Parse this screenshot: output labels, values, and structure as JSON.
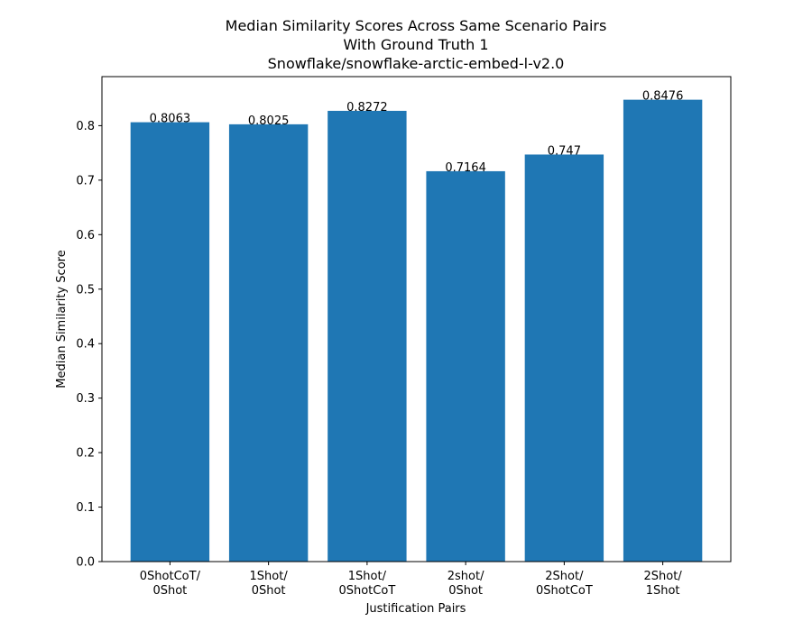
{
  "chart_data": {
    "type": "bar",
    "title": [
      "Median Similarity Scores Across Same Scenario Pairs",
      "With Ground Truth 1",
      "Snowflake/snowflake-arctic-embed-l-v2.0"
    ],
    "xlabel": "Justification Pairs",
    "ylabel": "Median Similarity Score",
    "categories": [
      [
        "0ShotCoT/",
        "0Shot"
      ],
      [
        "1Shot/",
        "0Shot"
      ],
      [
        "1Shot/",
        "0ShotCoT"
      ],
      [
        "2shot/",
        "0Shot"
      ],
      [
        "2Shot/",
        "0ShotCoT"
      ],
      [
        "2Shot/",
        "1Shot"
      ]
    ],
    "values": [
      0.8063,
      0.8025,
      0.8272,
      0.7164,
      0.747,
      0.8476
    ],
    "value_labels": [
      "0.8063",
      "0.8025",
      "0.8272",
      "0.7164",
      "0.747",
      "0.8476"
    ],
    "ylim": [
      0,
      0.89
    ],
    "yticks": [
      0.0,
      0.1,
      0.2,
      0.3,
      0.4,
      0.5,
      0.6,
      0.7,
      0.8
    ],
    "ytick_labels": [
      "0.0",
      "0.1",
      "0.2",
      "0.3",
      "0.4",
      "0.5",
      "0.6",
      "0.7",
      "0.8"
    ],
    "bar_color": "#1f77b4",
    "grid": false,
    "legend": "none"
  }
}
